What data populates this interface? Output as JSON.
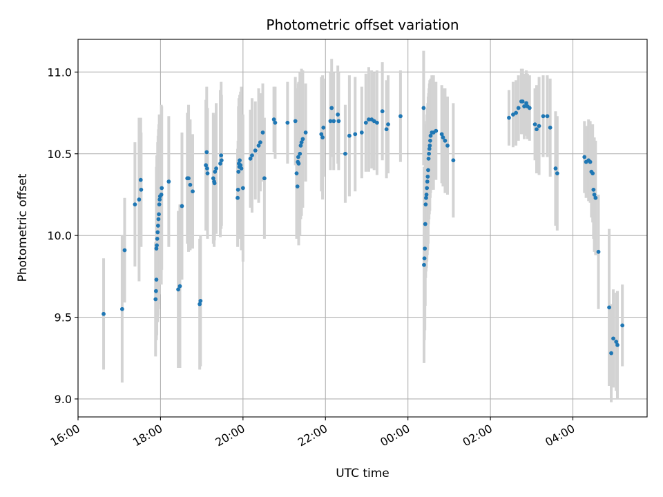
{
  "chart_data": {
    "type": "scatter",
    "title": "Photometric offset variation",
    "xlabel": "UTC time",
    "ylabel": "Photometric offset",
    "xlim_hours": [
      16.0,
      29.8
    ],
    "ylim": [
      8.89,
      11.2
    ],
    "x_tick_labels": [
      "16:00",
      "18:00",
      "20:00",
      "22:00",
      "00:00",
      "02:00",
      "04:00"
    ],
    "x_tick_hours": [
      16,
      18,
      20,
      22,
      24,
      26,
      28
    ],
    "y_ticks": [
      9.0,
      9.5,
      10.0,
      10.5,
      11.0
    ],
    "y_tick_labels": [
      "9.0",
      "9.5",
      "10.0",
      "10.5",
      "11.0"
    ],
    "grid": true,
    "point_color": "#1f77b4",
    "errorbar_color": "#d3d3d3",
    "points": [
      [
        16.62,
        9.52,
        0.34
      ],
      [
        17.07,
        9.55,
        0.45
      ],
      [
        17.13,
        9.91,
        0.32
      ],
      [
        17.38,
        10.19,
        0.38
      ],
      [
        17.48,
        10.22,
        0.5
      ],
      [
        17.52,
        10.34,
        0.38
      ],
      [
        17.53,
        10.28,
        0.35
      ],
      [
        17.88,
        9.61,
        0.35
      ],
      [
        17.89,
        9.66,
        0.3
      ],
      [
        17.9,
        9.73,
        0.37
      ],
      [
        17.9,
        9.92,
        0.5
      ],
      [
        17.91,
        9.94,
        0.55
      ],
      [
        17.92,
        9.98,
        0.5
      ],
      [
        17.93,
        10.02,
        0.55
      ],
      [
        17.94,
        10.06,
        0.55
      ],
      [
        17.95,
        10.1,
        0.55
      ],
      [
        17.96,
        10.13,
        0.55
      ],
      [
        17.97,
        10.19,
        0.55
      ],
      [
        17.98,
        10.22,
        0.5
      ],
      [
        17.99,
        10.24,
        0.5
      ],
      [
        18.02,
        10.25,
        0.55
      ],
      [
        18.03,
        10.29,
        0.5
      ],
      [
        18.2,
        10.33,
        0.4
      ],
      [
        18.43,
        9.67,
        0.48
      ],
      [
        18.47,
        9.69,
        0.5
      ],
      [
        18.52,
        10.18,
        0.45
      ],
      [
        18.65,
        10.35,
        0.4
      ],
      [
        18.68,
        10.35,
        0.45
      ],
      [
        18.72,
        10.31,
        0.4
      ],
      [
        18.78,
        10.27,
        0.35
      ],
      [
        18.95,
        9.58,
        0.4
      ],
      [
        18.97,
        9.6,
        0.4
      ],
      [
        19.1,
        10.43,
        0.4
      ],
      [
        19.12,
        10.51,
        0.4
      ],
      [
        19.13,
        10.41,
        0.35
      ],
      [
        19.14,
        10.38,
        0.4
      ],
      [
        19.28,
        10.35,
        0.4
      ],
      [
        19.3,
        10.33,
        0.4
      ],
      [
        19.31,
        10.32,
        0.35
      ],
      [
        19.32,
        10.39,
        0.35
      ],
      [
        19.35,
        10.41,
        0.4
      ],
      [
        19.45,
        10.44,
        0.45
      ],
      [
        19.47,
        10.49,
        0.45
      ],
      [
        19.48,
        10.46,
        0.4
      ],
      [
        19.87,
        10.23,
        0.3
      ],
      [
        19.88,
        10.28,
        0.3
      ],
      [
        19.89,
        10.39,
        0.4
      ],
      [
        19.9,
        10.44,
        0.4
      ],
      [
        19.91,
        10.42,
        0.4
      ],
      [
        19.92,
        10.46,
        0.4
      ],
      [
        19.94,
        10.43,
        0.45
      ],
      [
        19.96,
        10.41,
        0.5
      ],
      [
        20.0,
        10.29,
        0.45
      ],
      [
        20.18,
        10.47,
        0.3
      ],
      [
        20.22,
        10.49,
        0.35
      ],
      [
        20.3,
        10.52,
        0.3
      ],
      [
        20.38,
        10.55,
        0.35
      ],
      [
        20.42,
        10.57,
        0.3
      ],
      [
        20.48,
        10.63,
        0.3
      ],
      [
        20.52,
        10.35,
        0.37
      ],
      [
        20.75,
        10.71,
        0.2
      ],
      [
        20.78,
        10.69,
        0.22
      ],
      [
        21.08,
        10.69,
        0.25
      ],
      [
        21.27,
        10.7,
        0.27
      ],
      [
        21.3,
        10.38,
        0.4
      ],
      [
        21.32,
        10.3,
        0.3
      ],
      [
        21.33,
        10.45,
        0.45
      ],
      [
        21.34,
        10.48,
        0.45
      ],
      [
        21.35,
        10.44,
        0.5
      ],
      [
        21.38,
        10.5,
        0.5
      ],
      [
        21.4,
        10.55,
        0.45
      ],
      [
        21.42,
        10.57,
        0.45
      ],
      [
        21.45,
        10.59,
        0.42
      ],
      [
        21.52,
        10.63,
        0.3
      ],
      [
        21.9,
        10.62,
        0.35
      ],
      [
        21.93,
        10.6,
        0.38
      ],
      [
        21.95,
        10.66,
        0.3
      ],
      [
        22.12,
        10.7,
        0.3
      ],
      [
        22.15,
        10.78,
        0.3
      ],
      [
        22.2,
        10.7,
        0.3
      ],
      [
        22.3,
        10.74,
        0.3
      ],
      [
        22.32,
        10.7,
        0.3
      ],
      [
        22.48,
        10.5,
        0.3
      ],
      [
        22.58,
        10.61,
        0.37
      ],
      [
        22.72,
        10.62,
        0.35
      ],
      [
        22.88,
        10.63,
        0.28
      ],
      [
        22.98,
        10.69,
        0.3
      ],
      [
        23.05,
        10.71,
        0.32
      ],
      [
        23.12,
        10.71,
        0.3
      ],
      [
        23.18,
        10.7,
        0.3
      ],
      [
        23.25,
        10.69,
        0.32
      ],
      [
        23.38,
        10.76,
        0.3
      ],
      [
        23.48,
        10.65,
        0.3
      ],
      [
        23.52,
        10.68,
        0.3
      ],
      [
        23.82,
        10.73,
        0.28
      ],
      [
        24.38,
        10.78,
        0.35
      ],
      [
        24.39,
        9.82,
        0.6
      ],
      [
        24.4,
        9.86,
        0.5
      ],
      [
        24.41,
        9.92,
        0.5
      ],
      [
        24.42,
        10.07,
        0.5
      ],
      [
        24.43,
        10.19,
        0.45
      ],
      [
        24.44,
        10.23,
        0.45
      ],
      [
        24.45,
        10.25,
        0.45
      ],
      [
        24.46,
        10.29,
        0.45
      ],
      [
        24.47,
        10.33,
        0.45
      ],
      [
        24.48,
        10.36,
        0.45
      ],
      [
        24.49,
        10.4,
        0.45
      ],
      [
        24.5,
        10.47,
        0.4
      ],
      [
        24.51,
        10.5,
        0.4
      ],
      [
        24.52,
        10.53,
        0.4
      ],
      [
        24.53,
        10.55,
        0.4
      ],
      [
        24.54,
        10.58,
        0.35
      ],
      [
        24.55,
        10.61,
        0.35
      ],
      [
        24.58,
        10.63,
        0.35
      ],
      [
        24.62,
        10.63,
        0.35
      ],
      [
        24.68,
        10.64,
        0.3
      ],
      [
        24.82,
        10.62,
        0.3
      ],
      [
        24.85,
        10.6,
        0.3
      ],
      [
        24.9,
        10.58,
        0.32
      ],
      [
        24.96,
        10.55,
        0.3
      ],
      [
        25.1,
        10.46,
        0.35
      ],
      [
        26.45,
        10.72,
        0.17
      ],
      [
        26.55,
        10.74,
        0.2
      ],
      [
        26.62,
        10.75,
        0.2
      ],
      [
        26.68,
        10.78,
        0.2
      ],
      [
        26.75,
        10.82,
        0.2
      ],
      [
        26.78,
        10.82,
        0.2
      ],
      [
        26.82,
        10.79,
        0.2
      ],
      [
        26.87,
        10.81,
        0.2
      ],
      [
        26.9,
        10.79,
        0.2
      ],
      [
        26.95,
        10.78,
        0.2
      ],
      [
        27.08,
        10.68,
        0.22
      ],
      [
        27.12,
        10.65,
        0.27
      ],
      [
        27.18,
        10.67,
        0.3
      ],
      [
        27.28,
        10.73,
        0.25
      ],
      [
        27.38,
        10.73,
        0.25
      ],
      [
        27.45,
        10.66,
        0.3
      ],
      [
        27.58,
        10.41,
        0.35
      ],
      [
        27.62,
        10.38,
        0.35
      ],
      [
        28.28,
        10.48,
        0.22
      ],
      [
        28.32,
        10.45,
        0.22
      ],
      [
        28.38,
        10.46,
        0.25
      ],
      [
        28.42,
        10.45,
        0.25
      ],
      [
        28.45,
        10.39,
        0.28
      ],
      [
        28.48,
        10.38,
        0.3
      ],
      [
        28.5,
        10.28,
        0.3
      ],
      [
        28.52,
        10.25,
        0.35
      ],
      [
        28.55,
        10.23,
        0.35
      ],
      [
        28.62,
        9.9,
        0.35
      ],
      [
        28.88,
        9.56,
        0.48
      ],
      [
        28.93,
        9.28,
        0.3
      ],
      [
        28.98,
        9.37,
        0.3
      ],
      [
        29.05,
        9.35,
        0.3
      ],
      [
        29.08,
        9.33,
        0.33
      ],
      [
        29.2,
        9.45,
        0.25
      ]
    ]
  }
}
